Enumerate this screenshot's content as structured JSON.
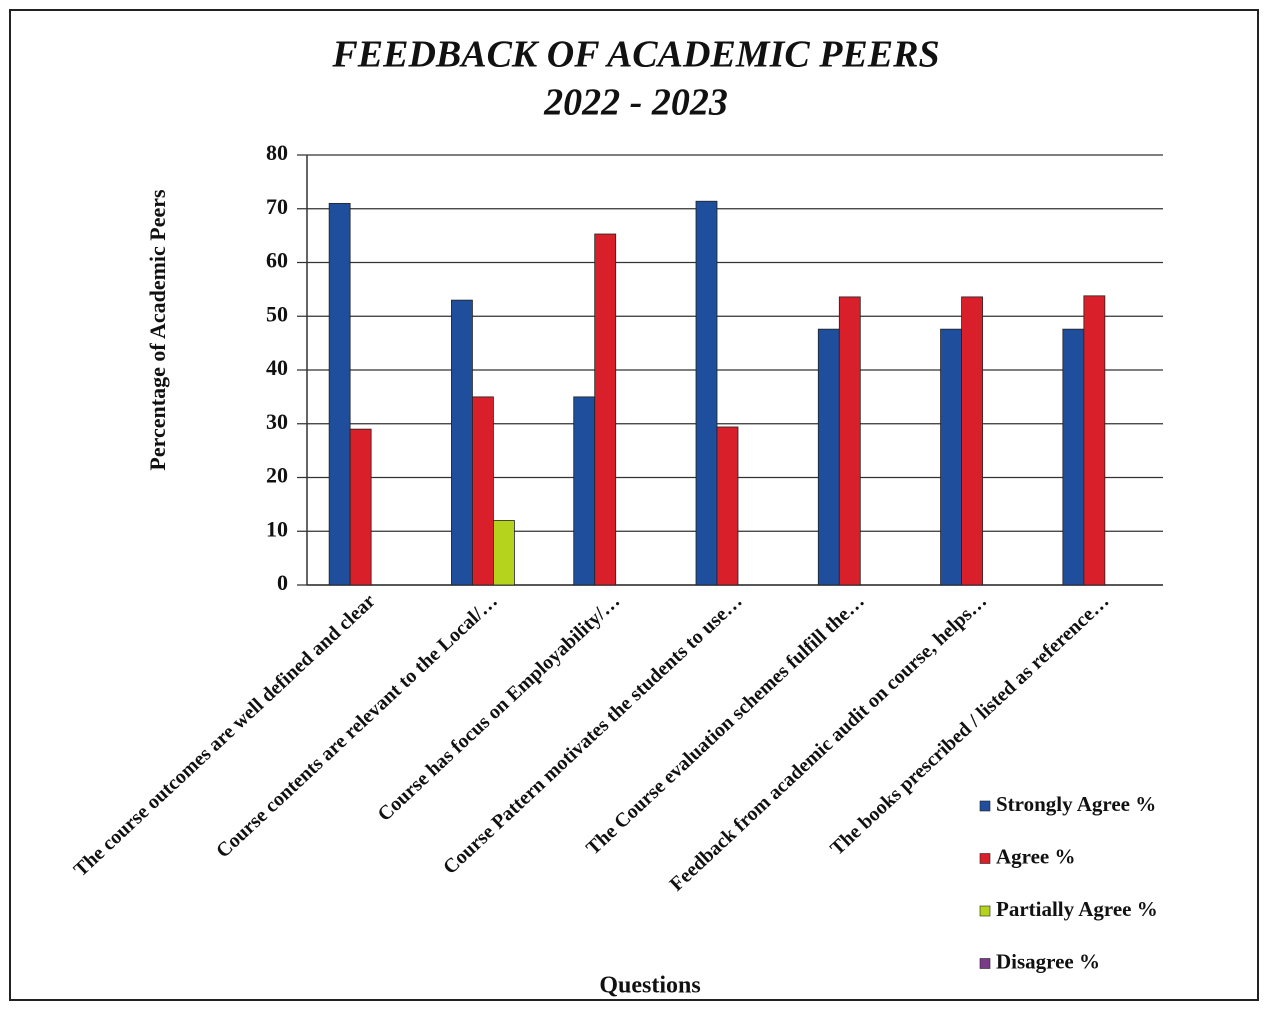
{
  "chart_data": {
    "type": "bar",
    "title": "FEEDBACK OF ACADEMIC PEERS",
    "subtitle": "2022 - 2023",
    "y_label": "Percentage of Academic Peers",
    "x_label": "Questions",
    "categories": [
      "The course outcomes are well defined and clear",
      "Course contents are relevant to the Local/…",
      "Course has focus on Employability/…",
      "Course Pattern motivates the students to use…",
      "The Course evaluation schemes fulfill the…",
      "Feedback from academic audit on course, helps…",
      "The books prescribed / listed as reference…"
    ],
    "series": [
      {
        "name": "Strongly Agree %",
        "color": "#1f4e9c",
        "values": [
          71,
          53,
          35,
          71.4,
          47.6,
          47.6,
          47.6
        ]
      },
      {
        "name": "Agree %",
        "color": "#d9202a",
        "values": [
          29,
          35,
          65.3,
          29.4,
          53.6,
          53.6,
          53.8
        ]
      },
      {
        "name": "Partially Agree %",
        "color": "#b5d31c",
        "values": [
          0,
          12,
          0,
          0,
          0,
          0,
          0
        ]
      },
      {
        "name": "Disagree %",
        "color": "#7a3c8a",
        "values": [
          0,
          0,
          0,
          0,
          0,
          0,
          0
        ]
      }
    ],
    "ylim": [
      0,
      80
    ],
    "yticks": [
      0,
      10,
      20,
      30,
      40,
      50,
      60,
      70,
      80
    ],
    "grid": true,
    "legend": "bottom-right"
  }
}
